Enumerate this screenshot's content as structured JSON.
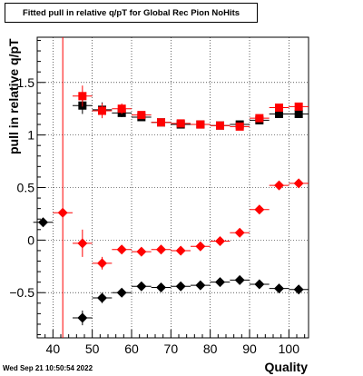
{
  "chart_data": {
    "type": "scatter",
    "title": "Fitted pull in relative q/pT for Global Rec Pion NoHits",
    "xlabel": "Quality",
    "ylabel": "pull in relative q/pT",
    "timestamp": "Wed Sep 21 10:50:54 2022",
    "xlim": [
      36,
      105
    ],
    "ylim": [
      -0.93,
      1.93
    ],
    "xticks": [
      40,
      50,
      60,
      70,
      80,
      90,
      100
    ],
    "yticks": [
      -0.5,
      0,
      0.5,
      1,
      1.5
    ],
    "ytick_labels": [
      "−0.5",
      "0",
      "0.5",
      "1",
      "1.5"
    ],
    "grid": true,
    "vertical_line": {
      "x": 42.5,
      "color": "#ff0000"
    },
    "series": [
      {
        "marker": "square",
        "color": "#000000",
        "x": [
          47.5,
          52.5,
          57.5,
          62.5,
          67.5,
          72.5,
          77.5,
          82.5,
          87.5,
          92.5,
          97.5,
          102.5
        ],
        "y": [
          1.28,
          1.24,
          1.21,
          1.17,
          1.12,
          1.1,
          1.1,
          1.09,
          1.1,
          1.14,
          1.2,
          1.2
        ],
        "yerr": [
          0.08,
          0.07,
          0.04,
          0.03,
          0.02,
          0.02,
          0.02,
          0.02,
          0.03,
          0.03,
          0.03,
          0.03
        ]
      },
      {
        "marker": "square",
        "color": "#ff0000",
        "x": [
          47.5,
          52.5,
          57.5,
          62.5,
          67.5,
          72.5,
          77.5,
          82.5,
          87.5,
          92.5,
          97.5,
          102.5
        ],
        "y": [
          1.37,
          1.23,
          1.25,
          1.19,
          1.12,
          1.11,
          1.1,
          1.09,
          1.08,
          1.16,
          1.26,
          1.27
        ],
        "yerr": [
          0.1,
          0.07,
          0.05,
          0.03,
          0.02,
          0.02,
          0.02,
          0.02,
          0.03,
          0.03,
          0.03,
          0.03
        ]
      },
      {
        "marker": "diamond",
        "color": "#000000",
        "x": [
          37.5,
          47.5,
          52.5,
          57.5,
          62.5,
          67.5,
          72.5,
          77.5,
          82.5,
          87.5,
          92.5,
          97.5,
          102.5
        ],
        "y": [
          0.17,
          -0.74,
          -0.55,
          -0.5,
          -0.44,
          -0.45,
          -0.44,
          -0.43,
          -0.4,
          -0.38,
          -0.42,
          -0.46,
          -0.47
        ],
        "yerr": [
          0.0,
          0.07,
          0.05,
          0.03,
          0.02,
          0.02,
          0.02,
          0.02,
          0.02,
          0.02,
          0.02,
          0.02,
          0.02
        ]
      },
      {
        "marker": "diamond",
        "color": "#ff0000",
        "x": [
          42.5,
          47.5,
          52.5,
          57.5,
          62.5,
          67.5,
          72.5,
          77.5,
          82.5,
          87.5,
          92.5,
          97.5,
          102.5
        ],
        "y": [
          0.26,
          -0.03,
          -0.22,
          -0.09,
          -0.11,
          -0.09,
          -0.1,
          -0.06,
          -0.01,
          0.07,
          0.29,
          0.52,
          0.54
        ],
        "yerr": [
          0.0,
          0.13,
          0.06,
          0.04,
          0.03,
          0.02,
          0.02,
          0.02,
          0.02,
          0.02,
          0.02,
          0.02,
          0.02
        ]
      }
    ]
  }
}
